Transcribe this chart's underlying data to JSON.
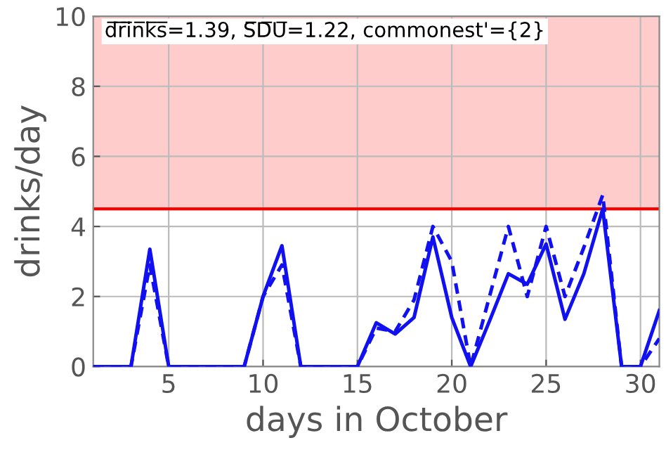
{
  "chart_data": {
    "type": "line",
    "xlabel": "days in October",
    "ylabel": "drinks/day",
    "x": [
      1,
      2,
      3,
      4,
      5,
      6,
      7,
      8,
      9,
      10,
      11,
      12,
      13,
      14,
      15,
      16,
      17,
      18,
      19,
      20,
      21,
      22,
      23,
      24,
      25,
      26,
      27,
      28,
      29,
      30,
      31
    ],
    "series": [
      {
        "color": "#1010f0",
        "line_style": "solid",
        "values": [
          0,
          0,
          0,
          3.35,
          0,
          0,
          0,
          0,
          0,
          2.0,
          3.45,
          0,
          0,
          0,
          0,
          1.25,
          0.93,
          1.4,
          3.7,
          1.4,
          0,
          1.3,
          2.65,
          2.35,
          3.5,
          1.35,
          2.65,
          4.5,
          0,
          0,
          1.6
        ]
      },
      {
        "color": "#1010f0",
        "line_style": "dashed",
        "values": [
          0,
          0,
          0,
          2.9,
          0,
          0,
          0,
          0,
          0,
          2.0,
          2.9,
          0,
          0,
          0,
          0,
          1.1,
          1.0,
          1.9,
          4.0,
          3.0,
          0,
          2.0,
          4.0,
          2.0,
          4.0,
          2.0,
          3.4,
          4.9,
          0,
          0,
          0.8
        ]
      }
    ],
    "xlim": [
      1,
      31
    ],
    "ylim": [
      0,
      10
    ],
    "xticks": [
      5,
      10,
      15,
      20,
      25,
      30
    ],
    "yticks": [
      0,
      2,
      4,
      6,
      8,
      10
    ],
    "grid": true,
    "bands": [
      {
        "axis": "y",
        "from": 4.5,
        "to": 10,
        "color": "#ffcccc"
      }
    ],
    "ref_lines": [
      {
        "axis": "y",
        "value": 4.5,
        "color": "#ff0000",
        "line_style": "solid"
      }
    ],
    "annotations": [
      "d̅r̅i̅n̅k̅s̅=1.39, S̅D̅U̅=1.22, commonest'={2}"
    ]
  }
}
